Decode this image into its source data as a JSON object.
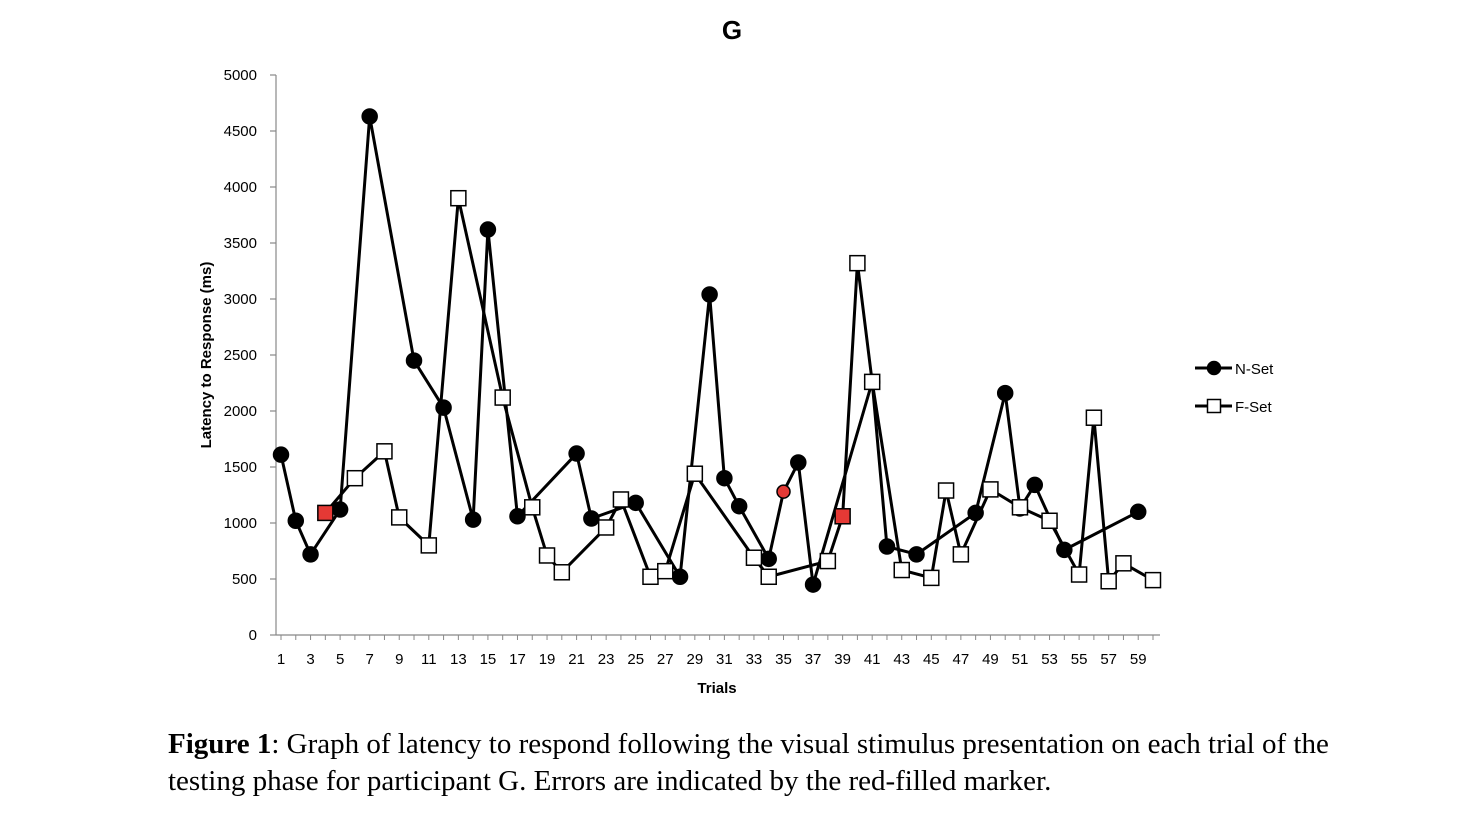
{
  "chart_data": {
    "type": "line",
    "title": "G",
    "xlabel": "Trials",
    "ylabel": "Latency to Response (ms)",
    "ylim": [
      0,
      5000
    ],
    "yticks": [
      0,
      500,
      1000,
      1500,
      2000,
      2500,
      3000,
      3500,
      4000,
      4500,
      5000
    ],
    "xlim": [
      1,
      60
    ],
    "xticks": [
      1,
      3,
      5,
      7,
      9,
      11,
      13,
      15,
      17,
      19,
      21,
      23,
      25,
      27,
      29,
      31,
      33,
      35,
      37,
      39,
      41,
      43,
      45,
      47,
      49,
      51,
      53,
      55,
      57,
      59
    ],
    "legend_position": "right",
    "series": [
      {
        "name": "N-Set",
        "marker": "circle",
        "color": "#000000",
        "error_color": "#e53935",
        "points": [
          {
            "x": 1,
            "y": 1610
          },
          {
            "x": 2,
            "y": 1020
          },
          {
            "x": 3,
            "y": 720
          },
          {
            "x": 5,
            "y": 1120
          },
          {
            "x": 7,
            "y": 4630
          },
          {
            "x": 10,
            "y": 2450
          },
          {
            "x": 12,
            "y": 2030
          },
          {
            "x": 14,
            "y": 1030
          },
          {
            "x": 15,
            "y": 3620
          },
          {
            "x": 17,
            "y": 1060
          },
          {
            "x": 21,
            "y": 1620
          },
          {
            "x": 22,
            "y": 1040
          },
          {
            "x": 25,
            "y": 1180
          },
          {
            "x": 28,
            "y": 520
          },
          {
            "x": 30,
            "y": 3040
          },
          {
            "x": 31,
            "y": 1400
          },
          {
            "x": 32,
            "y": 1150
          },
          {
            "x": 34,
            "y": 680
          },
          {
            "x": 35,
            "y": 1280,
            "error": true
          },
          {
            "x": 36,
            "y": 1540
          },
          {
            "x": 37,
            "y": 450
          },
          {
            "x": 41,
            "y": 2260
          },
          {
            "x": 42,
            "y": 790
          },
          {
            "x": 44,
            "y": 720
          },
          {
            "x": 48,
            "y": 1090
          },
          {
            "x": 50,
            "y": 2160
          },
          {
            "x": 51,
            "y": 1130
          },
          {
            "x": 52,
            "y": 1340
          },
          {
            "x": 54,
            "y": 760
          },
          {
            "x": 59,
            "y": 1100
          }
        ]
      },
      {
        "name": "F-Set",
        "marker": "square",
        "color": "#000000",
        "error_color": "#e53935",
        "points": [
          {
            "x": 4,
            "y": 1090,
            "error": true
          },
          {
            "x": 6,
            "y": 1400
          },
          {
            "x": 8,
            "y": 1640
          },
          {
            "x": 9,
            "y": 1050
          },
          {
            "x": 11,
            "y": 800
          },
          {
            "x": 13,
            "y": 3900
          },
          {
            "x": 16,
            "y": 2120
          },
          {
            "x": 18,
            "y": 1140
          },
          {
            "x": 19,
            "y": 710
          },
          {
            "x": 20,
            "y": 560
          },
          {
            "x": 23,
            "y": 960
          },
          {
            "x": 24,
            "y": 1210
          },
          {
            "x": 26,
            "y": 520
          },
          {
            "x": 27,
            "y": 570
          },
          {
            "x": 29,
            "y": 1440
          },
          {
            "x": 33,
            "y": 690
          },
          {
            "x": 34,
            "y": 520
          },
          {
            "x": 38,
            "y": 660
          },
          {
            "x": 39,
            "y": 1060,
            "error": true
          },
          {
            "x": 40,
            "y": 3320
          },
          {
            "x": 41,
            "y": 2260
          },
          {
            "x": 43,
            "y": 580
          },
          {
            "x": 45,
            "y": 510
          },
          {
            "x": 46,
            "y": 1290
          },
          {
            "x": 47,
            "y": 720
          },
          {
            "x": 49,
            "y": 1300
          },
          {
            "x": 51,
            "y": 1140
          },
          {
            "x": 53,
            "y": 1020
          },
          {
            "x": 55,
            "y": 540
          },
          {
            "x": 56,
            "y": 1940
          },
          {
            "x": 57,
            "y": 480
          },
          {
            "x": 58,
            "y": 640
          },
          {
            "x": 60,
            "y": 490
          }
        ]
      }
    ]
  },
  "caption": {
    "label": "Figure 1",
    "text": ": Graph of latency to respond following the visual stimulus presentation on each trial of the testing phase for participant G. Errors are indicated by the red-filled marker."
  }
}
